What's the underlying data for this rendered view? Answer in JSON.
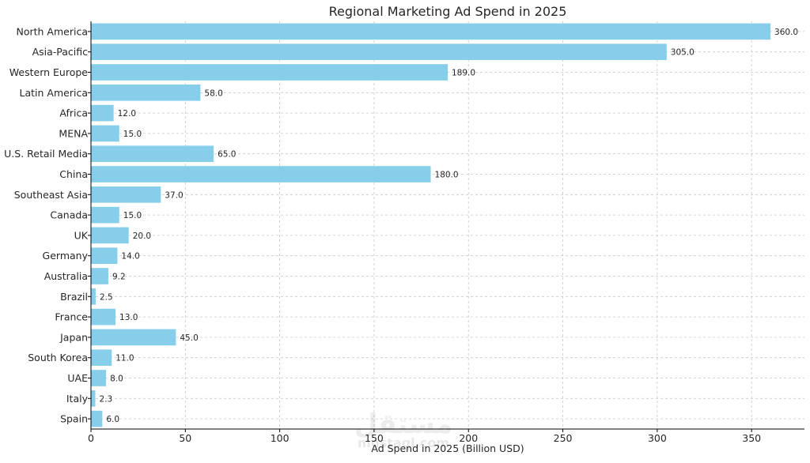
{
  "chart_data": {
    "type": "bar",
    "orientation": "horizontal",
    "title": "Regional Marketing Ad Spend in 2025",
    "xlabel": "Ad Spend in 2025 (Billion USD)",
    "ylabel": "",
    "xlim": [
      0,
      378
    ],
    "xticks": [
      0,
      50,
      100,
      150,
      200,
      250,
      300,
      350
    ],
    "grid": true,
    "bar_color": "#87ceeb",
    "categories": [
      "North America",
      "Asia-Pacific",
      "Western Europe",
      "Latin America",
      "Africa",
      "MENA",
      "U.S. Retail Media",
      "China",
      "Southeast Asia",
      "Canada",
      "UK",
      "Germany",
      "Australia",
      "Brazil",
      "France",
      "Japan",
      "South Korea",
      "UAE",
      "Italy",
      "Spain"
    ],
    "values": [
      360.0,
      305.0,
      189.0,
      58.0,
      12.0,
      15.0,
      65.0,
      180.0,
      37.0,
      15.0,
      20.0,
      14.0,
      9.2,
      2.5,
      13.0,
      45.0,
      11.0,
      8.0,
      2.3,
      6.0
    ],
    "data_labels": [
      "360.0",
      "305.0",
      "189.0",
      "58.0",
      "12.0",
      "15.0",
      "65.0",
      "180.0",
      "37.0",
      "15.0",
      "20.0",
      "14.0",
      "9.2",
      "2.5",
      "13.0",
      "45.0",
      "11.0",
      "8.0",
      "2.3",
      "6.0"
    ]
  },
  "watermark": {
    "text": "مستقل",
    "subtext": "mostaql.com"
  }
}
